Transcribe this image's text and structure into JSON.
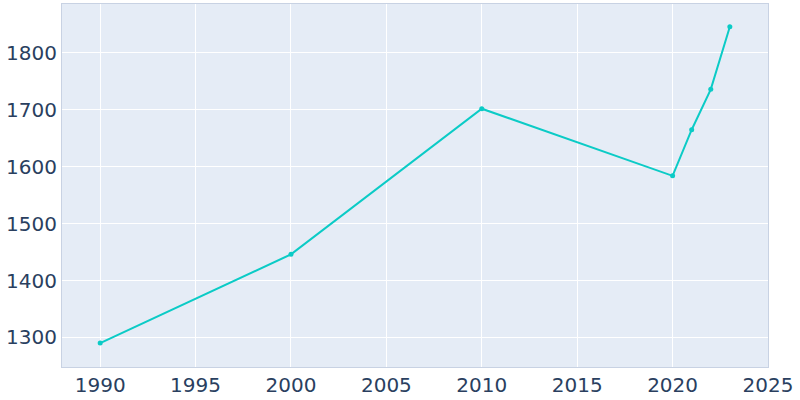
{
  "chart_data": {
    "type": "line",
    "x": [
      1990,
      2000,
      2010,
      2020,
      2021,
      2022,
      2023
    ],
    "values": [
      1290,
      1446,
      1702,
      1584,
      1665,
      1736,
      1846
    ],
    "color": "#0bcbc6",
    "marker": "circle",
    "xlim": [
      1988,
      2025
    ],
    "xticks": [
      1990,
      1995,
      2000,
      2005,
      2010,
      2015,
      2020,
      2025
    ],
    "ylim": [
      1248,
      1886
    ],
    "yticks": [
      1300,
      1400,
      1500,
      1600,
      1700,
      1800
    ],
    "grid": true
  }
}
